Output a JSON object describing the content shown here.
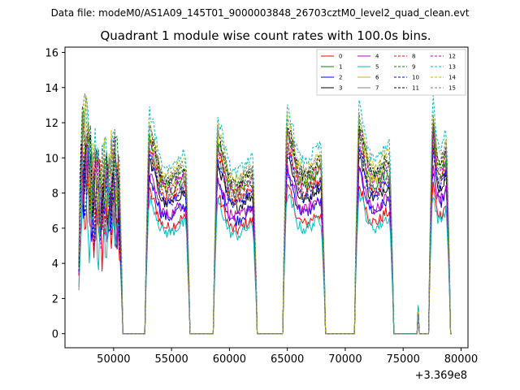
{
  "chart_data": {
    "type": "line",
    "suptitle": "Data file: modeM0/AS1A09_145T01_9000003848_26703cztM0_level2_quad_clean.evt",
    "title": "Quadrant 1 module wise count rates with 100.0s bins.",
    "xlabel": "",
    "ylabel": "",
    "x_offset_label": "+3.369e8",
    "xlim": [
      45800,
      80600
    ],
    "ylim": [
      -0.8,
      16.3
    ],
    "x_ticks": [
      50000,
      55000,
      60000,
      65000,
      70000,
      75000,
      80000
    ],
    "x_tick_labels": [
      "50000",
      "55000",
      "60000",
      "65000",
      "70000",
      "75000",
      "80000"
    ],
    "y_ticks": [
      0,
      2,
      4,
      6,
      8,
      10,
      12,
      14,
      16
    ],
    "y_tick_labels": [
      "0",
      "2",
      "4",
      "6",
      "8",
      "10",
      "12",
      "14",
      "16"
    ],
    "legend": {
      "placement": "top-right",
      "columns": 4
    },
    "segments": [
      {
        "start": 47000,
        "end": 50700,
        "mean": 7.6,
        "peak": 8.4,
        "noisy": true
      },
      {
        "start": 52800,
        "end": 56500,
        "mean": 8.0,
        "peak": 8.9,
        "noisy": false
      },
      {
        "start": 58700,
        "end": 62300,
        "mean": 7.8,
        "peak": 9.2,
        "noisy": false
      },
      {
        "start": 64700,
        "end": 68200,
        "mean": 8.3,
        "peak": 10.2,
        "noisy": false
      },
      {
        "start": 70900,
        "end": 74100,
        "mean": 8.4,
        "peak": 11.4,
        "noisy": false
      },
      {
        "start": 77300,
        "end": 79000,
        "mean": 9.0,
        "peak": 11.6,
        "noisy": false
      }
    ],
    "blip": {
      "x": 76300,
      "y": 1.4
    },
    "series": [
      {
        "name": "0",
        "color": "#ff0000",
        "dashed": false,
        "scale": 0.82
      },
      {
        "name": "1",
        "color": "#008000",
        "dashed": false,
        "scale": 1.1
      },
      {
        "name": "2",
        "color": "#0000ff",
        "dashed": false,
        "scale": 0.9
      },
      {
        "name": "3",
        "color": "#000000",
        "dashed": false,
        "scale": 1.0
      },
      {
        "name": "4",
        "color": "#bf00bf",
        "dashed": false,
        "scale": 0.92
      },
      {
        "name": "5",
        "color": "#00bfbf",
        "dashed": false,
        "scale": 0.78
      },
      {
        "name": "6",
        "color": "#bfbf00",
        "dashed": false,
        "scale": 1.14
      },
      {
        "name": "7",
        "color": "#808080",
        "dashed": false,
        "scale": 1.04
      },
      {
        "name": "8",
        "color": "#ff0000",
        "dashed": true,
        "scale": 1.06
      },
      {
        "name": "9",
        "color": "#008000",
        "dashed": true,
        "scale": 1.16
      },
      {
        "name": "10",
        "color": "#0000ff",
        "dashed": true,
        "scale": 1.02
      },
      {
        "name": "11",
        "color": "#000000",
        "dashed": true,
        "scale": 1.18
      },
      {
        "name": "12",
        "color": "#bf00bf",
        "dashed": true,
        "scale": 1.12
      },
      {
        "name": "13",
        "color": "#00bfbf",
        "dashed": true,
        "scale": 1.28
      },
      {
        "name": "14",
        "color": "#bfbf00",
        "dashed": true,
        "scale": 1.22
      },
      {
        "name": "15",
        "color": "#808080",
        "dashed": true,
        "scale": 1.2
      }
    ]
  }
}
